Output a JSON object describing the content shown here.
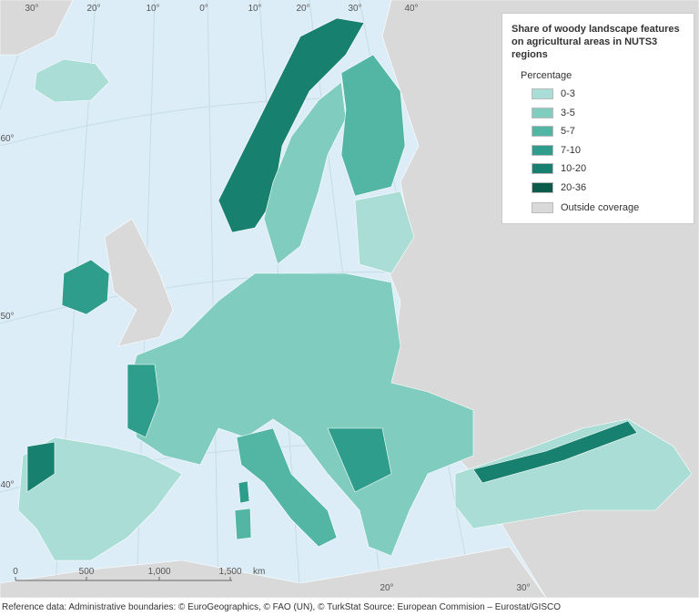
{
  "legend": {
    "title": "Share of woody landscape features on agricultural areas in NUTS3 regions",
    "heading": "Percentage",
    "items": [
      {
        "label": "0-3",
        "color": "#a9ddd5"
      },
      {
        "label": "3-5",
        "color": "#80cdbf"
      },
      {
        "label": "5-7",
        "color": "#53b6a4"
      },
      {
        "label": "7-10",
        "color": "#2f9d8b"
      },
      {
        "label": "10-20",
        "color": "#18806e"
      },
      {
        "label": "20-36",
        "color": "#0b5a4c"
      }
    ],
    "outside": {
      "label": "Outside coverage",
      "color": "#d9d9d9"
    }
  },
  "graticule": [
    "30°",
    "20°",
    "10°",
    "0°",
    "10°",
    "20°",
    "30°",
    "40°",
    "60°",
    "50°",
    "40°",
    "20°",
    "30°"
  ],
  "scale_bar": {
    "labels": [
      "0",
      "500",
      "1,000",
      "1,500"
    ],
    "unit": "km"
  },
  "footer": "Reference data: Administrative boundaries: © EuroGeographics, © FAO (UN), © TurkStat Source: European Commision – Eurostat/GISCO"
}
